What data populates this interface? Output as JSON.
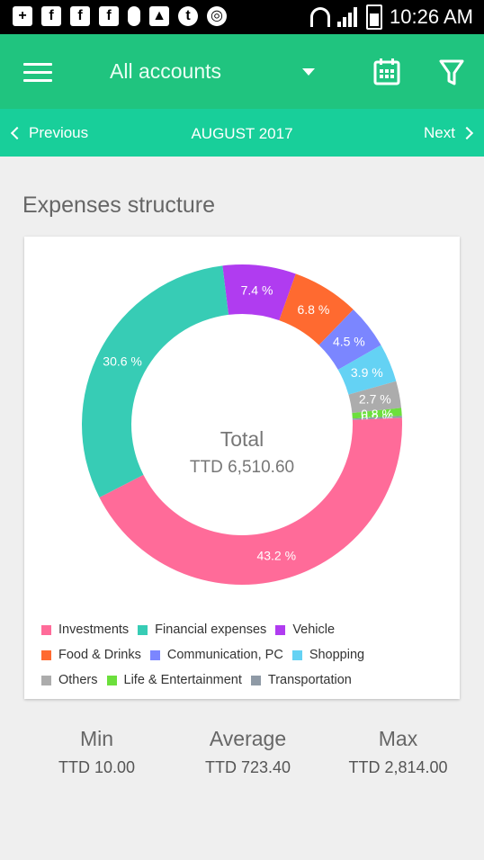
{
  "status_bar": {
    "time": "10:26 AM"
  },
  "app_bar": {
    "account_selector": "All accounts"
  },
  "period_nav": {
    "previous_label": "Previous",
    "month_label": "AUGUST 2017",
    "next_label": "Next"
  },
  "section": {
    "title": "Expenses structure"
  },
  "total": {
    "label": "Total",
    "value": "TTD 6,510.60"
  },
  "chart_data": {
    "type": "pie",
    "series": [
      {
        "name": "Vehicle",
        "value": 7.4,
        "label": "7.4 %",
        "color": "#b03cf0"
      },
      {
        "name": "Food & Drinks",
        "value": 6.8,
        "label": "6.8 %",
        "color": "#ff6a30"
      },
      {
        "name": "Communication, PC",
        "value": 4.5,
        "label": "4.5 %",
        "color": "#7b86ff"
      },
      {
        "name": "Shopping",
        "value": 3.9,
        "label": "3.9 %",
        "color": "#64d2f4"
      },
      {
        "name": "Others",
        "value": 2.7,
        "label": "2.7 %",
        "color": "#acacac"
      },
      {
        "name": "Life & Entertainment",
        "value": 0.8,
        "label": "0.8 %",
        "color": "#6cdf3c"
      },
      {
        "name": "Transportation",
        "value": 0.2,
        "label": "0.2 %",
        "color": "#8f9aa6"
      },
      {
        "name": "Investments",
        "value": 43.2,
        "label": "43.2 %",
        "color": "#ff6b99"
      },
      {
        "name": "Financial expenses",
        "value": 30.6,
        "label": "30.6 %",
        "color": "#37ccb5"
      }
    ]
  },
  "legend": {
    "rows": [
      [
        {
          "name": "Investments",
          "color": "#ff6b99"
        },
        {
          "name": "Financial expenses",
          "color": "#37ccb5"
        },
        {
          "name": "Vehicle",
          "color": "#b03cf0"
        }
      ],
      [
        {
          "name": "Food & Drinks",
          "color": "#ff6a30"
        },
        {
          "name": "Communication, PC",
          "color": "#7b86ff"
        },
        {
          "name": "Shopping",
          "color": "#64d2f4"
        }
      ],
      [
        {
          "name": "Others",
          "color": "#acacac"
        },
        {
          "name": "Life & Entertainment",
          "color": "#6cdf3c"
        },
        {
          "name": "Transportation",
          "color": "#8f9aa6"
        }
      ]
    ]
  },
  "stats": {
    "min": {
      "label": "Min",
      "value": "TTD 10.00"
    },
    "average": {
      "label": "Average",
      "value": "TTD 723.40"
    },
    "max": {
      "label": "Max",
      "value": "TTD 2,814.00"
    }
  }
}
